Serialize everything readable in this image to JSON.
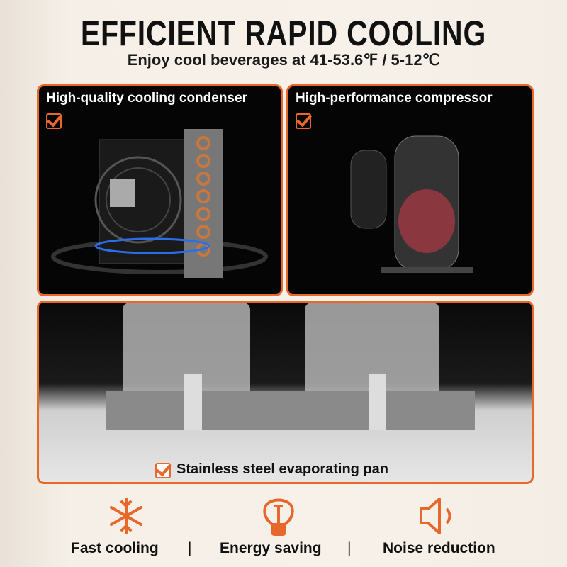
{
  "header": {
    "title": "EFFICIENT RAPID COOLING",
    "subtitle": "Enjoy cool beverages at 41-53.6℉ / 5-12℃"
  },
  "panels": [
    {
      "title": "High-quality cooling condenser",
      "icon": "checkbox-check-icon"
    },
    {
      "title": "High-performance compressor",
      "icon": "checkbox-check-icon"
    },
    {
      "title": "Stainless steel evaporating pan",
      "icon": "checkbox-check-icon"
    }
  ],
  "features": [
    {
      "label": "Fast cooling",
      "icon": "snowflake-icon"
    },
    {
      "label": "Energy saving",
      "icon": "lightbulb-icon"
    },
    {
      "label": "Noise reduction",
      "icon": "speaker-icon"
    }
  ],
  "separator": "|",
  "colors": {
    "accent": "#e8672a",
    "text": "#111111"
  }
}
